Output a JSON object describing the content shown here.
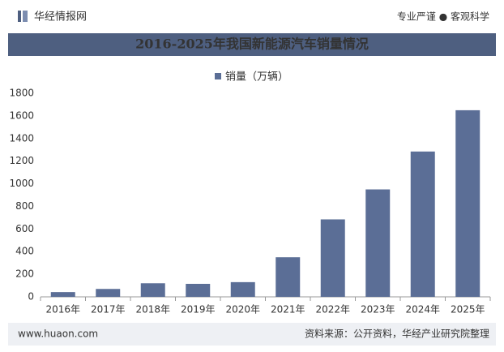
{
  "header": {
    "brand": "华经情报网",
    "tagline": "专业严谨 ● 客观科学"
  },
  "chart_data": {
    "type": "bar",
    "title": "2016-2025年我国新能源汽车销量情况",
    "categories": [
      "2016年",
      "2017年",
      "2018年",
      "2019年",
      "2020年",
      "2021年",
      "2022年",
      "2023年",
      "2024年",
      "2025年"
    ],
    "series": [
      {
        "name": "销量（万辆）",
        "color": "#5b6e96",
        "values": [
          42,
          70,
          120,
          115,
          130,
          350,
          685,
          950,
          1285,
          1650
        ]
      }
    ],
    "ylim": [
      0,
      1800
    ],
    "yticks": [
      0,
      200,
      400,
      600,
      800,
      1000,
      1200,
      1400,
      1600,
      1800
    ],
    "grid": false,
    "legend": "top"
  },
  "footer": {
    "website": "www.huaon.com",
    "source": "资料来源：公开资料，华经产业研究院整理"
  }
}
